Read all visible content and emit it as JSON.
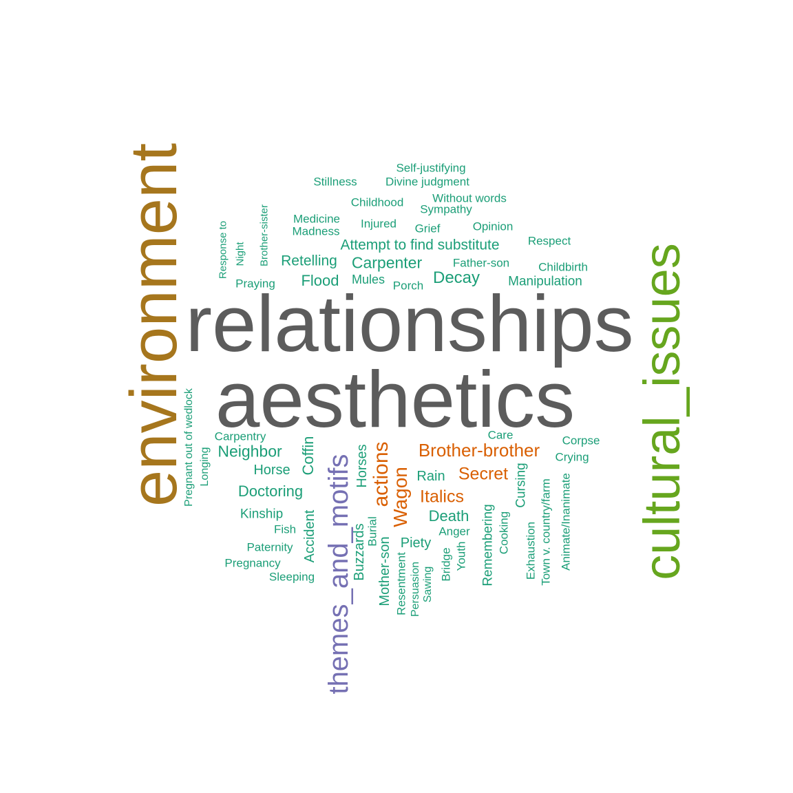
{
  "colors": {
    "dark_gray": "#5c5c5c",
    "green": "#1b9e77",
    "orange": "#d95f02",
    "purple": "#7570b3",
    "brown": "#a6761d",
    "lime": "#66a61e"
  },
  "words": [
    "relationships",
    "aesthetics",
    "environment",
    "cultural_issues",
    "themes_and_motifs",
    "actions",
    "Wagon",
    "Brother-brother",
    "Secret",
    "Italics",
    "Self-justifying",
    "Stillness",
    "Divine judgment",
    "Childhood",
    "Without words",
    "Sympathy",
    "Medicine",
    "Madness",
    "Injured",
    "Grief",
    "Opinion",
    "Attempt to find substitute",
    "Respect",
    "Retelling",
    "Carpenter",
    "Father-son",
    "Childbirth",
    "Mules",
    "Porch",
    "Decay",
    "Manipulation",
    "Flood",
    "Praying",
    "Response to",
    "Night",
    "Brother-sister",
    "Pregnant out of wedlock",
    "Longing",
    "Carpentry",
    "Neighbor",
    "Horse",
    "Doctoring",
    "Kinship",
    "Fish",
    "Paternity",
    "Pregnancy",
    "Sleeping",
    "Coffin",
    "Accident",
    "Horses",
    "Buzzards",
    "Burial",
    "Mother-son",
    "Resentment",
    "Piety",
    "Persuasion",
    "Sawing",
    "Rain",
    "Care",
    "Corpse",
    "Crying",
    "Death",
    "Anger",
    "Bridge",
    "Youth",
    "Remembering",
    "Cooking",
    "Cursing",
    "Exhaustion",
    "Town v. country/farm",
    "Animate/Inanimate"
  ]
}
